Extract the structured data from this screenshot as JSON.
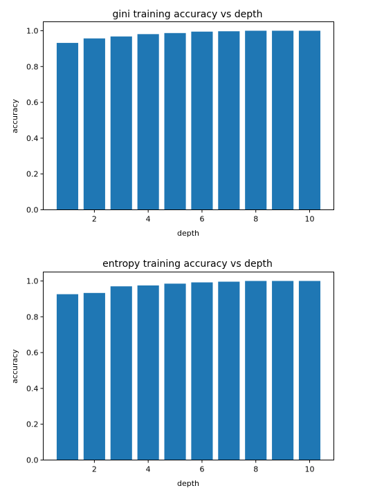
{
  "chart_data": [
    {
      "type": "bar",
      "title": "gini training accuracy vs depth",
      "xlabel": "depth",
      "ylabel": "accuracy",
      "x": [
        1,
        2,
        3,
        4,
        5,
        6,
        7,
        8,
        9,
        10
      ],
      "values": [
        0.932,
        0.957,
        0.968,
        0.981,
        0.987,
        0.995,
        0.997,
        1.0,
        1.0,
        1.0
      ],
      "xlim": [
        0.1,
        10.9
      ],
      "ylim": [
        0.0,
        1.05
      ],
      "xticks": [
        2,
        4,
        6,
        8,
        10
      ],
      "yticks": [
        0.0,
        0.2,
        0.4,
        0.6,
        0.8,
        1.0
      ],
      "xtick_labels": [
        "2",
        "4",
        "6",
        "8",
        "10"
      ],
      "ytick_labels": [
        "0.0",
        "0.2",
        "0.4",
        "0.6",
        "0.8",
        "1.0"
      ],
      "bar_color": "#1f77b4",
      "grid": false,
      "legend": "none"
    },
    {
      "type": "bar",
      "title": "entropy training accuracy vs depth",
      "xlabel": "depth",
      "ylabel": "accuracy",
      "x": [
        1,
        2,
        3,
        4,
        5,
        6,
        7,
        8,
        9,
        10
      ],
      "values": [
        0.926,
        0.933,
        0.97,
        0.975,
        0.985,
        0.992,
        0.996,
        1.0,
        1.0,
        1.0
      ],
      "xlim": [
        0.1,
        10.9
      ],
      "ylim": [
        0.0,
        1.05
      ],
      "xticks": [
        2,
        4,
        6,
        8,
        10
      ],
      "yticks": [
        0.0,
        0.2,
        0.4,
        0.6,
        0.8,
        1.0
      ],
      "xtick_labels": [
        "2",
        "4",
        "6",
        "8",
        "10"
      ],
      "ytick_labels": [
        "0.0",
        "0.2",
        "0.4",
        "0.6",
        "0.8",
        "1.0"
      ],
      "bar_color": "#1f77b4",
      "grid": false,
      "legend": "none"
    }
  ]
}
